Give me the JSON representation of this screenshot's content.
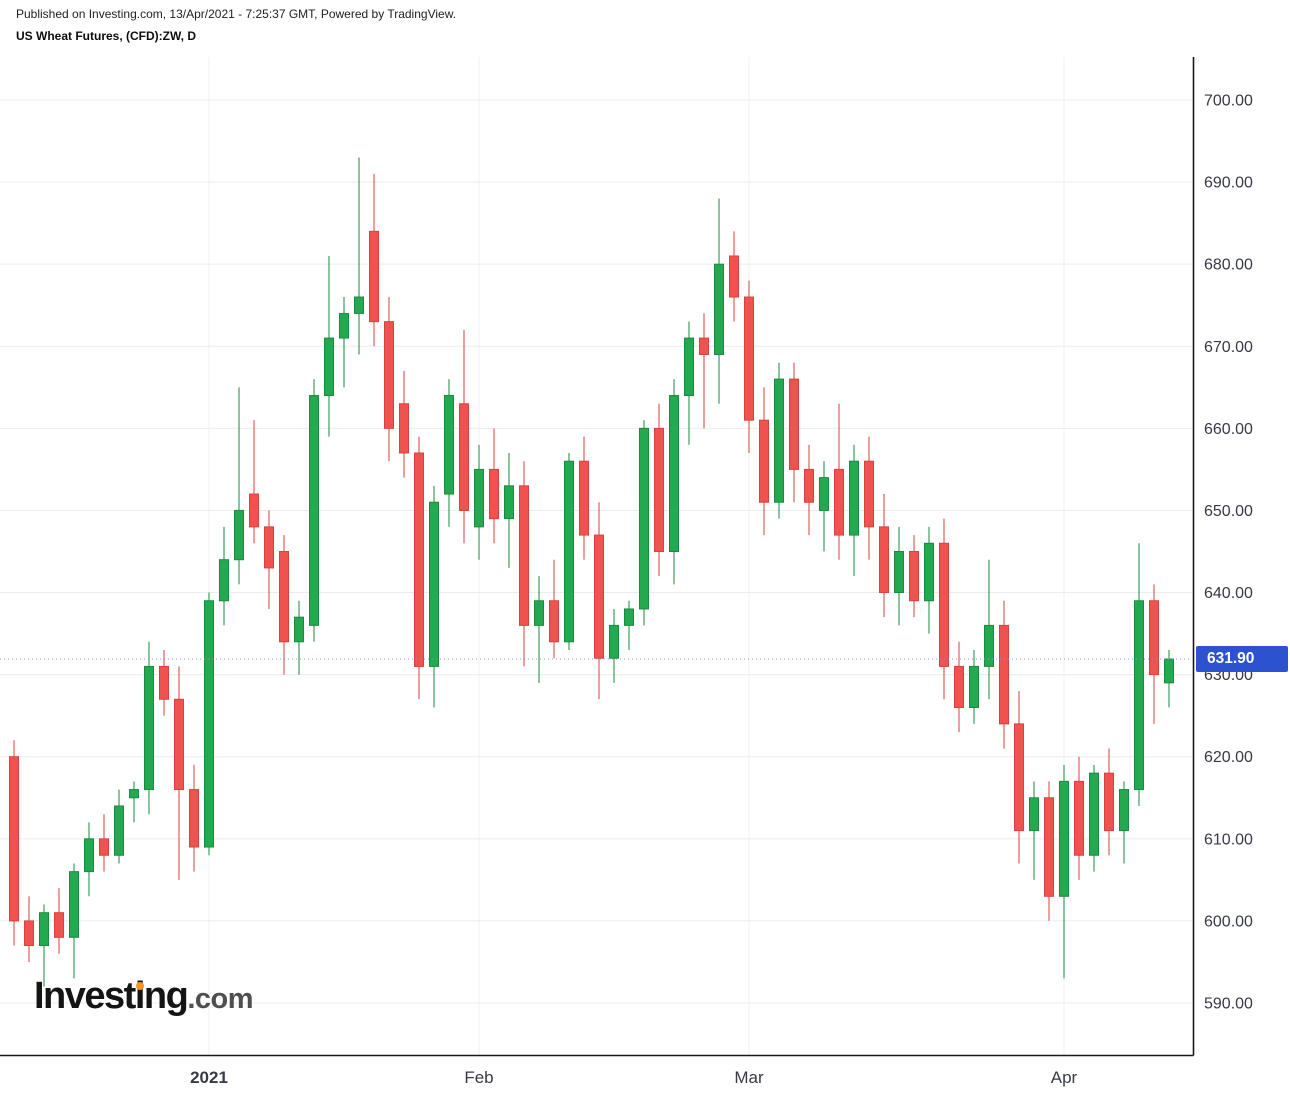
{
  "header": {
    "published": "Published on Investing.com, 13/Apr/2021 - 7:25:37 GMT, Powered by TradingView.",
    "instrument": "US Wheat Futures, (CFD):ZW, D"
  },
  "price_scale": {
    "min": 590,
    "max": 700,
    "step": 10,
    "labels": [
      "700.00",
      "690.00",
      "680.00",
      "670.00",
      "660.00",
      "650.00",
      "640.00",
      "630.00",
      "620.00",
      "610.00",
      "600.00",
      "590.00"
    ],
    "last_price": 631.9,
    "last_price_label": "631.90"
  },
  "time_scale": {
    "ticks": [
      {
        "label": "2021",
        "candle_index": 13,
        "bold": true
      },
      {
        "label": "Feb",
        "candle_index": 31,
        "bold": false
      },
      {
        "label": "Mar",
        "candle_index": 49,
        "bold": false
      },
      {
        "label": "Apr",
        "candle_index": 70,
        "bold": false
      }
    ]
  },
  "logo": {
    "part1": "Invest",
    "part2": "ing",
    "suffix": ".com"
  },
  "colors": {
    "up": "#23a950",
    "up_border": "#1b8a41",
    "down": "#ef5350",
    "down_border": "#d8423e",
    "grid": "#ececec",
    "grid_vertical": "#f2f2f2",
    "axis": "#17181b",
    "price_line": "#8099e8",
    "badge_bg": "#2c52cf",
    "badge_text": "#ffffff",
    "label": "#363a45",
    "logo_dot": "#f7941d"
  },
  "chart_data": {
    "type": "candlestick",
    "symbol": "US Wheat Futures, (CFD):ZW",
    "interval": "D",
    "title": "US Wheat Futures, (CFD):ZW, D",
    "ylim": [
      585,
      705
    ],
    "grid": true,
    "ohlc_format": [
      "open",
      "high",
      "low",
      "close"
    ],
    "last_close": 631.9,
    "candles": [
      [
        620,
        622,
        597,
        600
      ],
      [
        600,
        603,
        595,
        597
      ],
      [
        597,
        602,
        592,
        601
      ],
      [
        601,
        604,
        596,
        598
      ],
      [
        598,
        607,
        593,
        606
      ],
      [
        606,
        612,
        603,
        610
      ],
      [
        610,
        613,
        606,
        608
      ],
      [
        608,
        616,
        607,
        614
      ],
      [
        615,
        617,
        612,
        616
      ],
      [
        616,
        634,
        613,
        631
      ],
      [
        631,
        633,
        625,
        627
      ],
      [
        627,
        631,
        605,
        616
      ],
      [
        616,
        619,
        606,
        609
      ],
      [
        609,
        640,
        608,
        639
      ],
      [
        639,
        648,
        636,
        644
      ],
      [
        644,
        665,
        641,
        650
      ],
      [
        652,
        661,
        646,
        648
      ],
      [
        648,
        650,
        638,
        643
      ],
      [
        645,
        647,
        630,
        634
      ],
      [
        634,
        639,
        630,
        637
      ],
      [
        636,
        666,
        634,
        664
      ],
      [
        664,
        681,
        659,
        671
      ],
      [
        671,
        676,
        665,
        674
      ],
      [
        674,
        693,
        669,
        676
      ],
      [
        684,
        691,
        670,
        673
      ],
      [
        673,
        676,
        656,
        660
      ],
      [
        663,
        667,
        654,
        657
      ],
      [
        657,
        659,
        627,
        631
      ],
      [
        631,
        653,
        626,
        651
      ],
      [
        652,
        666,
        648,
        664
      ],
      [
        663,
        672,
        646,
        650
      ],
      [
        648,
        658,
        644,
        655
      ],
      [
        655,
        660,
        646,
        649
      ],
      [
        649,
        657,
        643,
        653
      ],
      [
        653,
        656,
        631,
        636
      ],
      [
        636,
        642,
        629,
        639
      ],
      [
        639,
        644,
        632,
        634
      ],
      [
        634,
        657,
        633,
        656
      ],
      [
        656,
        659,
        644,
        647
      ],
      [
        647,
        651,
        627,
        632
      ],
      [
        632,
        638,
        629,
        636
      ],
      [
        636,
        639,
        633,
        638
      ],
      [
        638,
        661,
        636,
        660
      ],
      [
        660,
        663,
        642,
        645
      ],
      [
        645,
        666,
        641,
        664
      ],
      [
        664,
        673,
        658,
        671
      ],
      [
        671,
        674,
        660,
        669
      ],
      [
        669,
        688,
        663,
        680
      ],
      [
        681,
        684,
        673,
        676
      ],
      [
        676,
        678,
        657,
        661
      ],
      [
        661,
        665,
        647,
        651
      ],
      [
        651,
        668,
        649,
        666
      ],
      [
        666,
        668,
        651,
        655
      ],
      [
        655,
        658,
        647,
        651
      ],
      [
        650,
        656,
        645,
        654
      ],
      [
        655,
        663,
        644,
        647
      ],
      [
        647,
        658,
        642,
        656
      ],
      [
        656,
        659,
        644,
        648
      ],
      [
        648,
        652,
        637,
        640
      ],
      [
        640,
        648,
        636,
        645
      ],
      [
        645,
        647,
        637,
        639
      ],
      [
        639,
        648,
        635,
        646
      ],
      [
        646,
        649,
        627,
        631
      ],
      [
        631,
        634,
        623,
        626
      ],
      [
        626,
        633,
        624,
        631
      ],
      [
        631,
        644,
        627,
        636
      ],
      [
        636,
        639,
        621,
        624
      ],
      [
        624,
        628,
        607,
        611
      ],
      [
        611,
        617,
        605,
        615
      ],
      [
        615,
        617,
        600,
        603
      ],
      [
        603,
        619,
        593,
        617
      ],
      [
        617,
        620,
        605,
        608
      ],
      [
        608,
        619,
        606,
        618
      ],
      [
        618,
        621,
        608,
        611
      ],
      [
        611,
        617,
        607,
        616
      ],
      [
        616,
        646,
        614,
        639
      ],
      [
        639,
        641,
        624,
        630
      ],
      [
        629,
        633,
        626,
        631.9
      ]
    ]
  }
}
